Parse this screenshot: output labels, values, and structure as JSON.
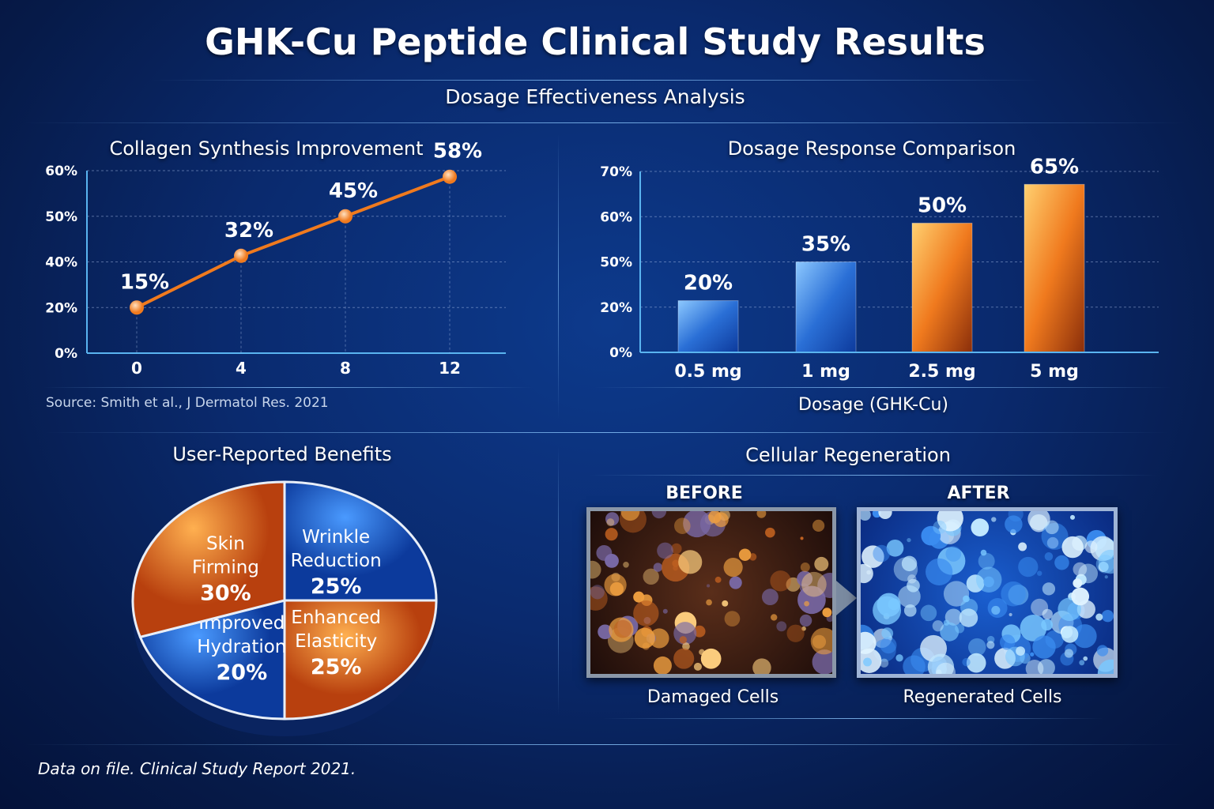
{
  "title": "GHK-Cu Peptide Clinical Study Results",
  "subtitle": "Dosage Effectiveness Analysis",
  "colors": {
    "orange": "#f07a1e",
    "blue": "#2a6fd6",
    "background": "#0a2a6e"
  },
  "chart_data": [
    {
      "type": "line",
      "title": "Collagen Synthesis Improvement",
      "x": [
        0,
        4,
        8,
        12
      ],
      "x_tick_labels": [
        "0",
        "4",
        "8",
        "12"
      ],
      "y_tick_labels": [
        "0%",
        "20%",
        "40%",
        "50%",
        "60%"
      ],
      "ylim": [
        0,
        60
      ],
      "series": [
        {
          "values": [
            15,
            32,
            45,
            58
          ],
          "data_labels": [
            "15%",
            "32%",
            "45%",
            "58%"
          ]
        }
      ],
      "grid": true,
      "source": "Source: Smith et al., J Dermatol Res. 2021"
    },
    {
      "type": "bar",
      "title": "Dosage Response Comparison",
      "categories": [
        "0.5 mg",
        "1 mg",
        "2.5 mg",
        "5 mg"
      ],
      "values": [
        20,
        35,
        50,
        65
      ],
      "data_labels": [
        "20%",
        "35%",
        "50%",
        "65%"
      ],
      "bar_colors": [
        "blue",
        "blue",
        "orange",
        "orange"
      ],
      "y_tick_labels": [
        "0%",
        "20%",
        "50%",
        "60%",
        "70%"
      ],
      "ylim": [
        0,
        70
      ],
      "xlabel": "Dosage (GHK-Cu)",
      "grid": true
    },
    {
      "type": "pie",
      "title": "User-Reported Benefits",
      "slices": [
        {
          "label_lines": [
            "Wrinkle",
            "Reduction"
          ],
          "value": 25,
          "value_label": "25%",
          "color": "blue"
        },
        {
          "label_lines": [
            "Enhanced",
            "Elasticity"
          ],
          "value": 25,
          "value_label": "25%",
          "color": "orange"
        },
        {
          "label_lines": [
            "Improved",
            "Hydration"
          ],
          "value": 20,
          "value_label": "20%",
          "color": "blue"
        },
        {
          "label_lines": [
            "Skin",
            "Firming"
          ],
          "value": 30,
          "value_label": "30%",
          "color": "orange"
        }
      ]
    }
  ],
  "cellular": {
    "title": "Cellular Regeneration",
    "before_label": "BEFORE",
    "after_label": "AFTER",
    "before_caption": "Damaged Cells",
    "after_caption": "Regenerated Cells"
  },
  "footer": "Data on file. Clinical Study Report 2021."
}
